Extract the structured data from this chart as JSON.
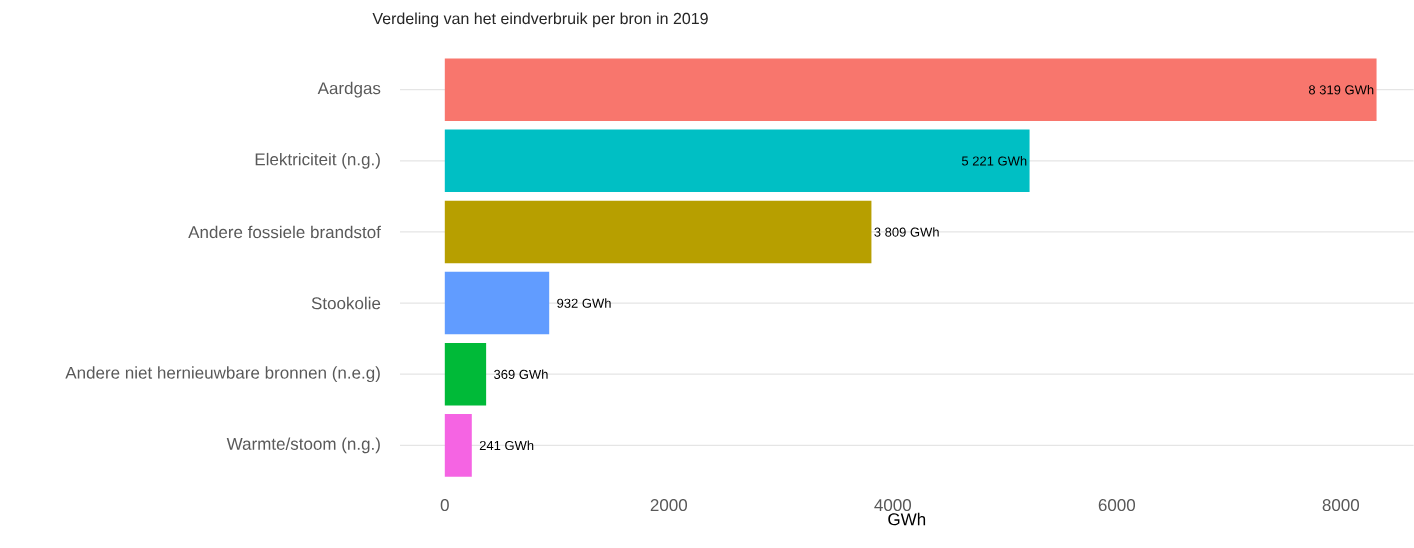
{
  "chart_data": {
    "type": "bar",
    "orientation": "horizontal",
    "title": "Verdeling van het eindverbruik per bron in 2019",
    "xlabel": "GWh",
    "categories": [
      "Aardgas",
      "Elektriciteit (n.g.)",
      "Andere fossiele brandstof",
      "Stookolie",
      "Andere niet hernieuwbare bronnen (n.e.g)",
      "Warmte/stoom (n.g.)"
    ],
    "values": [
      8319,
      5221,
      3809,
      932,
      369,
      241
    ],
    "value_labels": [
      "8 319 GWh",
      "5 221 GWh",
      "3 809 GWh",
      "932 GWh",
      "369 GWh",
      "241 GWh"
    ],
    "colors": [
      "#F8766D",
      "#00BFC4",
      "#B79F00",
      "#619CFF",
      "#00BA38",
      "#F564E3"
    ],
    "xlim": [
      -400,
      8650
    ],
    "xticks": [
      0,
      2000,
      4000,
      6000,
      8000
    ],
    "grid": "y"
  }
}
